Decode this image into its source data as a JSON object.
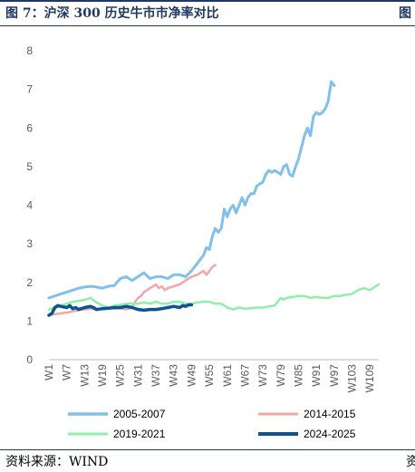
{
  "header": {
    "title": "图 7：沪深 300 历史牛市市净率对比",
    "right_fragment": "图"
  },
  "footer": {
    "source": "资料来源：WIND",
    "right_fragment": "资"
  },
  "colors": {
    "header_blue": "#1f3864",
    "s2005": "#7ec0ee",
    "s2014": "#f4a6a6",
    "s2019": "#8ef0a8",
    "s2024": "#0b5394"
  },
  "chart_data": {
    "type": "line",
    "title": "",
    "xlabel": "",
    "ylabel": "",
    "ylim": [
      0,
      8
    ],
    "yticks": [
      0,
      1,
      2,
      3,
      4,
      5,
      6,
      7,
      8
    ],
    "xlim": [
      1,
      112
    ],
    "xticks": [
      "W1",
      "W7",
      "W13",
      "W19",
      "W25",
      "W31",
      "W37",
      "W43",
      "W49",
      "W55",
      "W61",
      "W67",
      "W73",
      "W79",
      "W85",
      "W91",
      "W97",
      "W103",
      "W109"
    ],
    "grid": false,
    "legend_position": "bottom",
    "series": [
      {
        "name": "2005-2007",
        "color": "#7ec0ee",
        "width": 3,
        "points": [
          [
            1,
            1.6
          ],
          [
            3,
            1.65
          ],
          [
            5,
            1.7
          ],
          [
            7,
            1.75
          ],
          [
            9,
            1.8
          ],
          [
            11,
            1.85
          ],
          [
            13,
            1.88
          ],
          [
            15,
            1.9
          ],
          [
            17,
            1.88
          ],
          [
            19,
            1.85
          ],
          [
            21,
            1.9
          ],
          [
            23,
            1.92
          ],
          [
            25,
            2.1
          ],
          [
            27,
            2.15
          ],
          [
            28,
            2.1
          ],
          [
            29,
            2.05
          ],
          [
            30,
            2.1
          ],
          [
            31,
            2.15
          ],
          [
            33,
            2.25
          ],
          [
            35,
            2.1
          ],
          [
            37,
            2.15
          ],
          [
            39,
            2.15
          ],
          [
            41,
            2.1
          ],
          [
            43,
            2.2
          ],
          [
            45,
            2.2
          ],
          [
            47,
            2.15
          ],
          [
            49,
            2.3
          ],
          [
            51,
            2.5
          ],
          [
            53,
            2.7
          ],
          [
            54,
            2.9
          ],
          [
            55,
            2.85
          ],
          [
            56,
            3.2
          ],
          [
            57,
            3.4
          ],
          [
            58,
            3.3
          ],
          [
            59,
            3.4
          ],
          [
            60,
            3.9
          ],
          [
            61,
            3.7
          ],
          [
            62,
            3.9
          ],
          [
            63,
            4.0
          ],
          [
            64,
            3.8
          ],
          [
            65,
            4.0
          ],
          [
            66,
            4.2
          ],
          [
            67,
            4.0
          ],
          [
            68,
            4.2
          ],
          [
            69,
            4.3
          ],
          [
            70,
            4.3
          ],
          [
            71,
            4.5
          ],
          [
            73,
            4.6
          ],
          [
            74,
            4.8
          ],
          [
            75,
            4.9
          ],
          [
            76,
            4.85
          ],
          [
            77,
            4.9
          ],
          [
            78,
            4.85
          ],
          [
            79,
            4.8
          ],
          [
            80,
            5.0
          ],
          [
            81,
            5.05
          ],
          [
            82,
            4.8
          ],
          [
            83,
            4.75
          ],
          [
            84,
            5.0
          ],
          [
            85,
            5.2
          ],
          [
            86,
            5.5
          ],
          [
            87,
            5.8
          ],
          [
            88,
            6.0
          ],
          [
            89,
            5.8
          ],
          [
            90,
            6.3
          ],
          [
            91,
            6.4
          ],
          [
            92,
            6.35
          ],
          [
            93,
            6.4
          ],
          [
            94,
            6.5
          ],
          [
            95,
            6.7
          ],
          [
            96,
            7.2
          ],
          [
            97,
            7.1
          ]
        ]
      },
      {
        "name": "2014-2015",
        "color": "#f4a6a6",
        "width": 2.5,
        "points": [
          [
            1,
            1.15
          ],
          [
            3,
            1.18
          ],
          [
            5,
            1.2
          ],
          [
            7,
            1.22
          ],
          [
            9,
            1.25
          ],
          [
            11,
            1.28
          ],
          [
            13,
            1.3
          ],
          [
            15,
            1.32
          ],
          [
            17,
            1.3
          ],
          [
            19,
            1.32
          ],
          [
            21,
            1.35
          ],
          [
            23,
            1.32
          ],
          [
            25,
            1.33
          ],
          [
            27,
            1.3
          ],
          [
            29,
            1.35
          ],
          [
            30,
            1.5
          ],
          [
            31,
            1.6
          ],
          [
            32,
            1.65
          ],
          [
            33,
            1.75
          ],
          [
            35,
            1.85
          ],
          [
            36,
            1.9
          ],
          [
            37,
            1.95
          ],
          [
            38,
            1.85
          ],
          [
            39,
            1.9
          ],
          [
            40,
            1.8
          ],
          [
            41,
            1.85
          ],
          [
            43,
            1.9
          ],
          [
            45,
            1.95
          ],
          [
            47,
            2.05
          ],
          [
            49,
            2.15
          ],
          [
            51,
            2.2
          ],
          [
            53,
            2.3
          ],
          [
            54,
            2.2
          ],
          [
            55,
            2.3
          ],
          [
            56,
            2.4
          ],
          [
            57,
            2.45
          ]
        ]
      },
      {
        "name": "2019-2021",
        "color": "#8ef0a8",
        "width": 2.5,
        "points": [
          [
            1,
            1.3
          ],
          [
            3,
            1.35
          ],
          [
            5,
            1.4
          ],
          [
            7,
            1.45
          ],
          [
            9,
            1.5
          ],
          [
            11,
            1.52
          ],
          [
            13,
            1.55
          ],
          [
            15,
            1.6
          ],
          [
            17,
            1.48
          ],
          [
            19,
            1.4
          ],
          [
            21,
            1.35
          ],
          [
            23,
            1.4
          ],
          [
            25,
            1.42
          ],
          [
            27,
            1.45
          ],
          [
            29,
            1.45
          ],
          [
            31,
            1.45
          ],
          [
            33,
            1.48
          ],
          [
            35,
            1.45
          ],
          [
            37,
            1.5
          ],
          [
            39,
            1.45
          ],
          [
            41,
            1.45
          ],
          [
            43,
            1.5
          ],
          [
            45,
            1.5
          ],
          [
            47,
            1.45
          ],
          [
            49,
            1.45
          ],
          [
            51,
            1.48
          ],
          [
            53,
            1.5
          ],
          [
            55,
            1.5
          ],
          [
            57,
            1.45
          ],
          [
            59,
            1.45
          ],
          [
            61,
            1.35
          ],
          [
            63,
            1.3
          ],
          [
            65,
            1.35
          ],
          [
            67,
            1.32
          ],
          [
            69,
            1.33
          ],
          [
            71,
            1.35
          ],
          [
            73,
            1.35
          ],
          [
            75,
            1.38
          ],
          [
            77,
            1.4
          ],
          [
            78,
            1.5
          ],
          [
            79,
            1.6
          ],
          [
            80,
            1.55
          ],
          [
            81,
            1.6
          ],
          [
            83,
            1.62
          ],
          [
            85,
            1.65
          ],
          [
            87,
            1.65
          ],
          [
            89,
            1.6
          ],
          [
            91,
            1.62
          ],
          [
            93,
            1.6
          ],
          [
            95,
            1.6
          ],
          [
            97,
            1.65
          ],
          [
            99,
            1.65
          ],
          [
            101,
            1.68
          ],
          [
            103,
            1.7
          ],
          [
            105,
            1.8
          ],
          [
            107,
            1.85
          ],
          [
            109,
            1.8
          ],
          [
            111,
            1.9
          ],
          [
            112,
            1.95
          ]
        ]
      },
      {
        "name": "2024-2025",
        "color": "#0b5394",
        "width": 3.5,
        "points": [
          [
            1,
            1.15
          ],
          [
            2,
            1.2
          ],
          [
            3,
            1.35
          ],
          [
            4,
            1.4
          ],
          [
            5,
            1.38
          ],
          [
            7,
            1.35
          ],
          [
            8,
            1.4
          ],
          [
            9,
            1.32
          ],
          [
            10,
            1.35
          ],
          [
            11,
            1.3
          ],
          [
            13,
            1.35
          ],
          [
            15,
            1.38
          ],
          [
            16,
            1.35
          ],
          [
            17,
            1.3
          ],
          [
            19,
            1.32
          ],
          [
            21,
            1.33
          ],
          [
            23,
            1.35
          ],
          [
            25,
            1.35
          ],
          [
            27,
            1.38
          ],
          [
            29,
            1.35
          ],
          [
            31,
            1.3
          ],
          [
            33,
            1.28
          ],
          [
            35,
            1.3
          ],
          [
            37,
            1.3
          ],
          [
            39,
            1.32
          ],
          [
            41,
            1.35
          ],
          [
            43,
            1.38
          ],
          [
            45,
            1.35
          ],
          [
            46,
            1.4
          ],
          [
            47,
            1.38
          ],
          [
            48,
            1.42
          ],
          [
            49,
            1.42
          ]
        ]
      }
    ]
  }
}
